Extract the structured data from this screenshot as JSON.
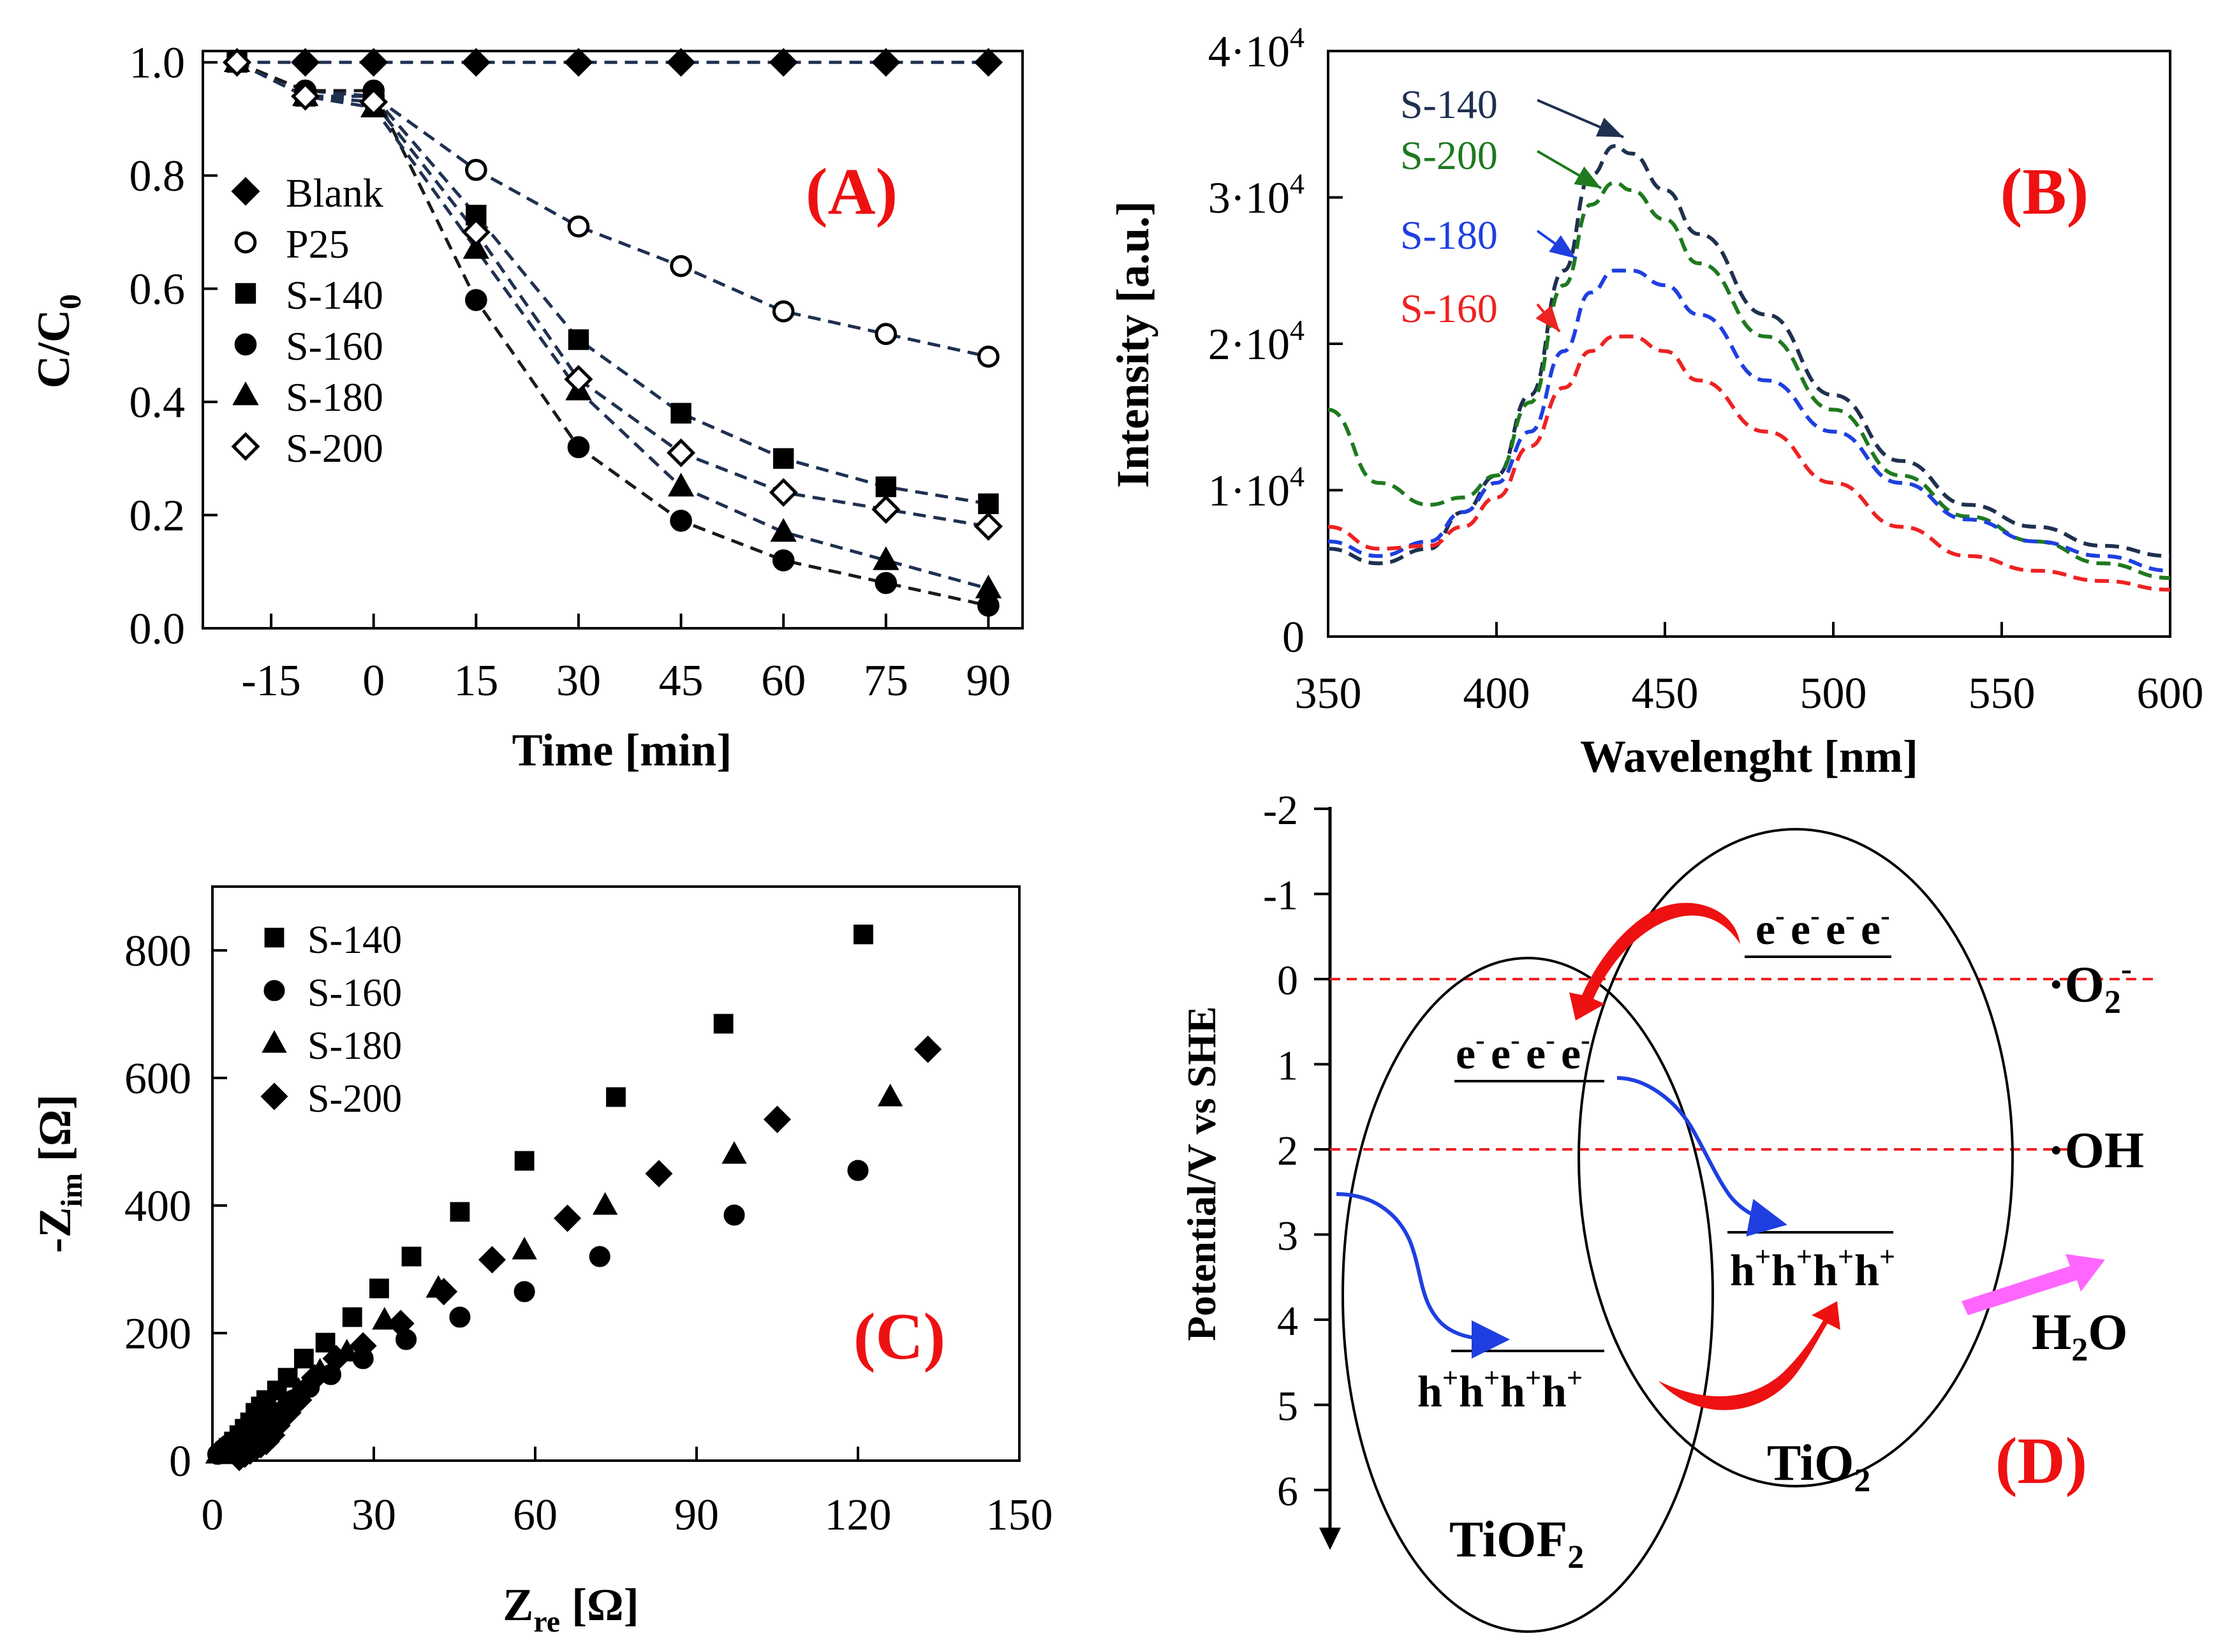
{
  "colors": {
    "axis": "#000000",
    "navy": "#1f3050",
    "black_line": "#1a1a1a",
    "green": "#1e7a1e",
    "blue": "#1f3fe0",
    "red": "#ee2222",
    "label_red": "#ee1111",
    "magenta": "#ff66ff"
  },
  "chart_data": [
    {
      "id": "A",
      "type": "line",
      "panel_label": "(A)",
      "xlabel": "Time [min]",
      "ylabel": "C/C",
      "ylabel_sub": "0",
      "x_ticks": [
        "-15",
        "0",
        "15",
        "30",
        "45",
        "60",
        "75",
        "90"
      ],
      "y_ticks": [
        "0.0",
        "0.2",
        "0.4",
        "0.6",
        "0.8",
        "1.0"
      ],
      "xlim": [
        -25,
        95
      ],
      "ylim": [
        0,
        1.02
      ],
      "x": [
        -20,
        -10,
        0,
        15,
        30,
        45,
        60,
        75,
        90
      ],
      "series": [
        {
          "name": "Blank",
          "marker": "diamond-filled",
          "color": "navy",
          "values": [
            1.0,
            1.0,
            1.0,
            1.0,
            1.0,
            1.0,
            1.0,
            1.0,
            1.0
          ]
        },
        {
          "name": "P25",
          "marker": "circle-open",
          "color": "navy",
          "values": [
            1.0,
            0.95,
            0.94,
            0.81,
            0.71,
            0.64,
            0.56,
            0.52,
            0.48
          ]
        },
        {
          "name": "S-140",
          "marker": "square-filled",
          "color": "navy",
          "values": [
            1.0,
            0.94,
            0.94,
            0.73,
            0.51,
            0.38,
            0.3,
            0.25,
            0.22
          ]
        },
        {
          "name": "S-160",
          "marker": "circle-filled",
          "color": "black_line",
          "values": [
            1.0,
            0.95,
            0.95,
            0.58,
            0.32,
            0.19,
            0.12,
            0.08,
            0.04
          ]
        },
        {
          "name": "S-180",
          "marker": "triangle-filled",
          "color": "navy",
          "values": [
            1.0,
            0.94,
            0.92,
            0.67,
            0.42,
            0.25,
            0.17,
            0.12,
            0.07
          ]
        },
        {
          "name": "S-200",
          "marker": "diamond-open",
          "color": "navy",
          "values": [
            1.0,
            0.94,
            0.93,
            0.7,
            0.44,
            0.31,
            0.24,
            0.21,
            0.18
          ]
        }
      ]
    },
    {
      "id": "B",
      "type": "line",
      "panel_label": "(B)",
      "xlabel": "Wavelenght [nm]",
      "ylabel": "Intensity [a.u.]",
      "x_ticks": [
        "350",
        "400",
        "450",
        "500",
        "550",
        "600"
      ],
      "y_ticks": [
        {
          "text": "0",
          "value": 0
        },
        {
          "text": "1·10",
          "exp": "4",
          "value": 10000
        },
        {
          "text": "2·10",
          "exp": "4",
          "value": 20000
        },
        {
          "text": "3·10",
          "exp": "4",
          "value": 30000
        },
        {
          "text": "4·10",
          "exp": "4",
          "value": 40000
        }
      ],
      "xlim": [
        350,
        600
      ],
      "ylim": [
        0,
        40000
      ],
      "x": [
        350,
        365,
        380,
        390,
        400,
        410,
        420,
        428,
        435,
        440,
        450,
        460,
        480,
        500,
        520,
        540,
        560,
        580,
        600
      ],
      "series": [
        {
          "name": "S-140",
          "color": "navy",
          "values": [
            6000,
            5000,
            6000,
            8500,
            11000,
            16500,
            25000,
            31500,
            33500,
            33000,
            30500,
            27500,
            22000,
            16500,
            12000,
            9000,
            7500,
            6200,
            5500
          ]
        },
        {
          "name": "S-200",
          "color": "green",
          "values": [
            15500,
            10500,
            9000,
            9500,
            11000,
            16000,
            24000,
            29500,
            31000,
            30500,
            28500,
            25500,
            20500,
            15500,
            11000,
            8200,
            6500,
            5000,
            4000
          ]
        },
        {
          "name": "S-180",
          "color": "blue",
          "values": [
            6500,
            5500,
            6500,
            8500,
            10500,
            14000,
            19500,
            23500,
            25000,
            25000,
            24000,
            22000,
            17500,
            14000,
            10500,
            8000,
            6500,
            5500,
            4500
          ]
        },
        {
          "name": "S-160",
          "color": "red",
          "values": [
            7500,
            6000,
            6200,
            7500,
            9500,
            13000,
            17000,
            19500,
            20500,
            20500,
            19500,
            17500,
            14000,
            10500,
            7500,
            5500,
            4500,
            3800,
            3200
          ]
        }
      ]
    },
    {
      "id": "C",
      "type": "scatter",
      "panel_label": "(C)",
      "xlabel": "Z",
      "xlabel_sub": "re",
      "xlabel_unit": " [Ω]",
      "ylabel": "-Z",
      "ylabel_sub": "im",
      "ylabel_unit": " [Ω]",
      "x_ticks": [
        "0",
        "30",
        "60",
        "90",
        "120",
        "150"
      ],
      "y_ticks": [
        "0",
        "200",
        "400",
        "600",
        "800"
      ],
      "xlim": [
        0,
        150
      ],
      "ylim": [
        0,
        900
      ],
      "series": [
        {
          "name": "S-140",
          "marker": "square-filled",
          "points": [
            [
              2,
              10
            ],
            [
              3,
              20
            ],
            [
              4,
              30
            ],
            [
              5,
              40
            ],
            [
              6,
              50
            ],
            [
              7,
              60
            ],
            [
              8,
              75
            ],
            [
              9,
              85
            ],
            [
              10,
              95
            ],
            [
              12,
              110
            ],
            [
              14,
              130
            ],
            [
              17,
              160
            ],
            [
              21,
              185
            ],
            [
              26,
              225
            ],
            [
              31,
              270
            ],
            [
              37,
              320
            ],
            [
              46,
              390
            ],
            [
              58,
              470
            ],
            [
              75,
              570
            ],
            [
              95,
              685
            ],
            [
              121,
              825
            ]
          ]
        },
        {
          "name": "S-160",
          "marker": "circle-filled",
          "points": [
            [
              1,
              10
            ],
            [
              2,
              18
            ],
            [
              3,
              25
            ],
            [
              4,
              30
            ],
            [
              5,
              35
            ],
            [
              6,
              40
            ],
            [
              7,
              45
            ],
            [
              8,
              50
            ],
            [
              10,
              60
            ],
            [
              12,
              75
            ],
            [
              15,
              95
            ],
            [
              18,
              115
            ],
            [
              22,
              135
            ],
            [
              28,
              160
            ],
            [
              36,
              190
            ],
            [
              46,
              225
            ],
            [
              58,
              265
            ],
            [
              72,
              320
            ],
            [
              97,
              385
            ],
            [
              120,
              455
            ]
          ]
        },
        {
          "name": "S-180",
          "marker": "triangle-filled",
          "points": [
            [
              1,
              10
            ],
            [
              2,
              15
            ],
            [
              3,
              20
            ],
            [
              4,
              25
            ],
            [
              5,
              30
            ],
            [
              6,
              35
            ],
            [
              7,
              40
            ],
            [
              8,
              45
            ],
            [
              9,
              50
            ],
            [
              11,
              65
            ],
            [
              13,
              85
            ],
            [
              16,
              110
            ],
            [
              20,
              140
            ],
            [
              25,
              170
            ],
            [
              32,
              220
            ],
            [
              42,
              270
            ],
            [
              58,
              330
            ],
            [
              73,
              400
            ],
            [
              97,
              480
            ],
            [
              126,
              570
            ]
          ]
        },
        {
          "name": "S-200",
          "marker": "diamond-filled",
          "points": [
            [
              5,
              5
            ],
            [
              6,
              10
            ],
            [
              7,
              15
            ],
            [
              8,
              20
            ],
            [
              9,
              25
            ],
            [
              10,
              30
            ],
            [
              11,
              40
            ],
            [
              12,
              55
            ],
            [
              14,
              75
            ],
            [
              16,
              95
            ],
            [
              19,
              130
            ],
            [
              23,
              160
            ],
            [
              28,
              180
            ],
            [
              35,
              215
            ],
            [
              43,
              265
            ],
            [
              52,
              315
            ],
            [
              66,
              380
            ],
            [
              83,
              450
            ],
            [
              105,
              535
            ],
            [
              133,
              645
            ]
          ]
        }
      ]
    }
  ],
  "panel_d": {
    "panel_label": "(D)",
    "axis_label": "Potential/V vs SHE",
    "ticks": [
      "-2",
      "-1",
      "0",
      "1",
      "2",
      "3",
      "4",
      "5",
      "6"
    ],
    "o2_label": "·O",
    "o2_sub": "2",
    "o2_sup": "-",
    "oh_label": "·OH",
    "h2o_label": "H",
    "h2o_sub": "2",
    "h2o_tail": "O",
    "tiof2_label": "TiOF",
    "tiof2_sub": "2",
    "tio2_label": "TiO",
    "tio2_sub": "2",
    "electron_base": "e",
    "electron_charge": "-",
    "hole_base": "h",
    "hole_charge": "+"
  }
}
